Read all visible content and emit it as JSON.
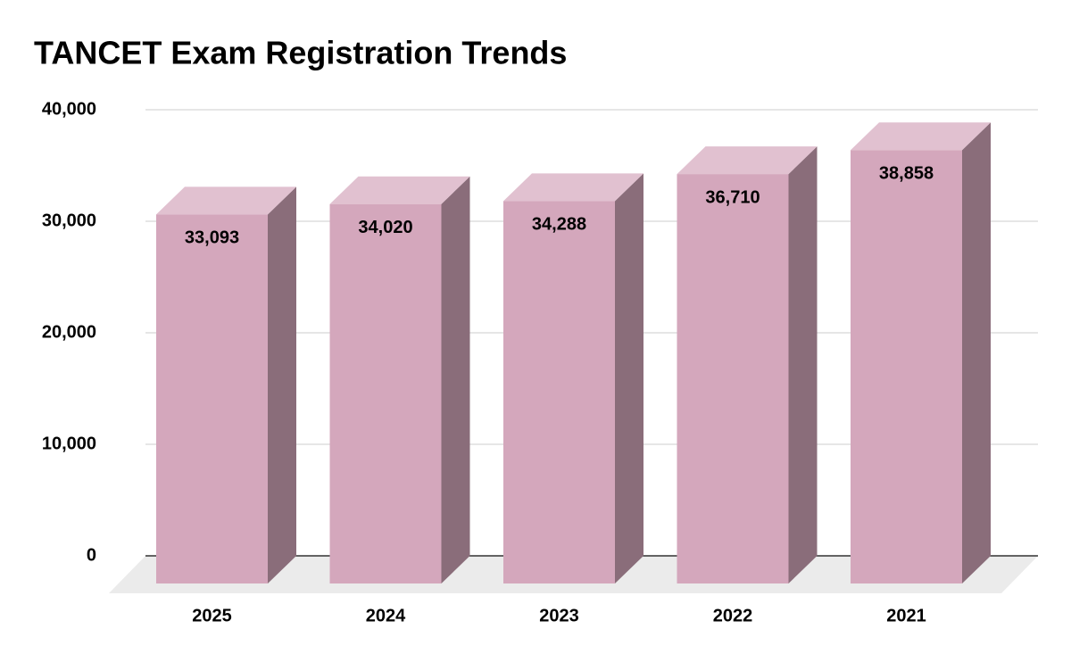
{
  "chart_data": {
    "type": "bar",
    "title": "TANCET Exam Registration Trends",
    "categories": [
      "2025",
      "2024",
      "2023",
      "2022",
      "2021"
    ],
    "values": [
      33093,
      34020,
      34288,
      36710,
      38858
    ],
    "value_labels": [
      "33,093",
      "34,020",
      "34,288",
      "36,710",
      "38,858"
    ],
    "color": "#d4a7bc",
    "ylim": [
      0,
      40000
    ],
    "yticks": [
      0,
      {
        "value": 10000,
        "label": "10,000"
      },
      {
        "value": 20000,
        "label": "20,000"
      },
      {
        "value": 30000,
        "label": "30,000"
      },
      {
        "value": 40000,
        "label": "40,000"
      }
    ],
    "grid": true
  }
}
